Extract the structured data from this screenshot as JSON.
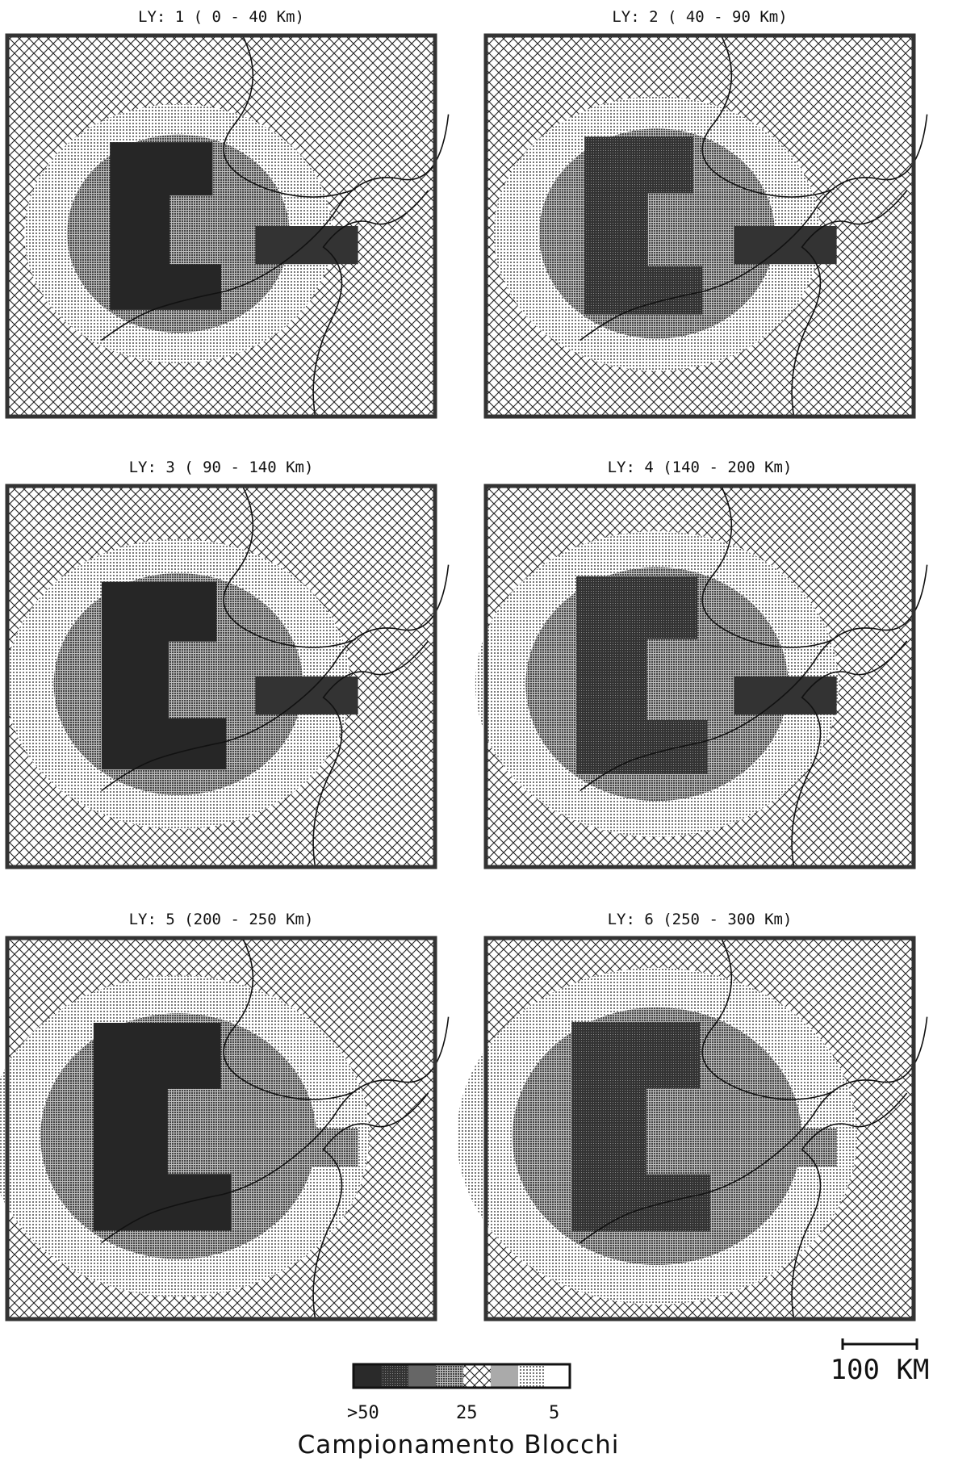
{
  "panels": [
    {
      "title": "LY: 1 (  0  -  40  Km)"
    },
    {
      "title": "LY: 2 ( 40  -  90  Km)"
    },
    {
      "title": "LY: 3 ( 90  - 140  Km)"
    },
    {
      "title": "LY: 4 (140  - 200  Km)"
    },
    {
      "title": "LY: 5 (200  - 250  Km)"
    },
    {
      "title": "LY: 6 (250  - 300  Km)"
    }
  ],
  "legend": {
    "labels": [
      ">50",
      "25",
      "5"
    ],
    "title": "Campionamento  Blocchi"
  },
  "scale_bar": {
    "label": "100  KM"
  }
}
